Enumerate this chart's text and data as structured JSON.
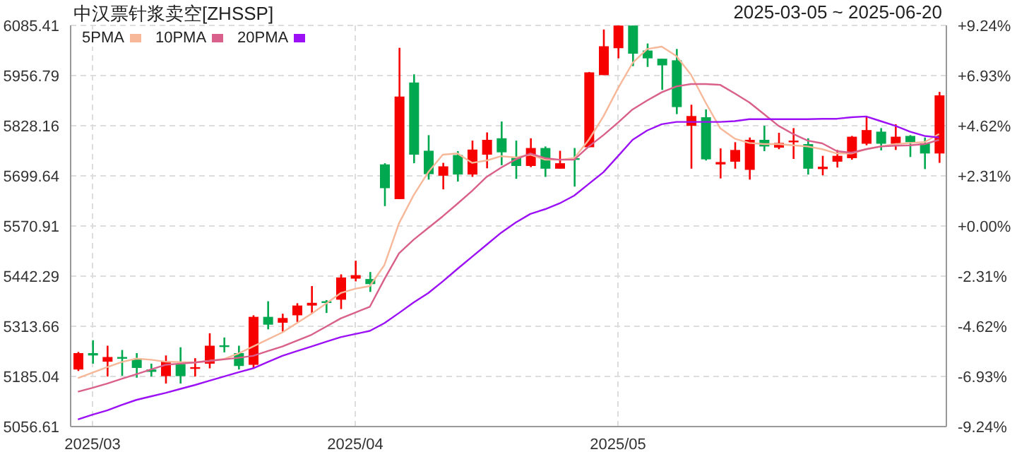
{
  "chart_data": {
    "type": "candlestick",
    "title": "中汉票针浆卖空[ZHSSP]",
    "subtitle": "2025-03-05 ~ 2025-06-20",
    "categories": [
      null,
      "2025/03",
      null,
      null,
      null,
      null,
      null,
      null,
      null,
      null,
      null,
      null,
      null,
      null,
      null,
      null,
      null,
      null,
      null,
      "2025/04",
      null,
      null,
      null,
      null,
      null,
      null,
      null,
      null,
      null,
      null,
      null,
      null,
      null,
      null,
      null,
      null,
      null,
      "2025/05",
      null,
      null,
      null,
      null,
      null,
      null,
      null,
      null,
      null,
      null,
      null,
      null,
      null,
      null,
      null,
      null,
      null,
      null,
      null,
      null,
      null,
      null
    ],
    "ohlc": [
      [
        5203,
        5248,
        5199,
        5245
      ],
      [
        5245,
        5278,
        5218,
        5239
      ],
      [
        5223,
        5264,
        5185,
        5235
      ],
      [
        5235,
        5253,
        5187,
        5232
      ],
      [
        5229,
        5245,
        5182,
        5207
      ],
      [
        5203,
        5218,
        5185,
        5197
      ],
      [
        5186,
        5239,
        5167,
        5224
      ],
      [
        5217,
        5260,
        5167,
        5186
      ],
      [
        5207,
        5232,
        5185,
        5209
      ],
      [
        5218,
        5296,
        5206,
        5264
      ],
      [
        5265,
        5285,
        5247,
        5261
      ],
      [
        5245,
        5264,
        5203,
        5212
      ],
      [
        5215,
        5342,
        5205,
        5338
      ],
      [
        5338,
        5378,
        5306,
        5318
      ],
      [
        5323,
        5346,
        5300,
        5335
      ],
      [
        5342,
        5373,
        5325,
        5367
      ],
      [
        5367,
        5417,
        5346,
        5374
      ],
      [
        5378,
        5381,
        5348,
        5375
      ],
      [
        5382,
        5447,
        5358,
        5439
      ],
      [
        5436,
        5482,
        5429,
        5445
      ],
      [
        5435,
        5453,
        5402,
        5422
      ],
      [
        5729,
        5732,
        5622,
        5668
      ],
      [
        5640,
        6028,
        5640,
        5903
      ],
      [
        5939,
        5960,
        5732,
        5754
      ],
      [
        5764,
        5804,
        5690,
        5704
      ],
      [
        5700,
        5733,
        5665,
        5724
      ],
      [
        5753,
        5763,
        5685,
        5703
      ],
      [
        5703,
        5790,
        5697,
        5767
      ],
      [
        5754,
        5811,
        5719,
        5792
      ],
      [
        5796,
        5839,
        5727,
        5760
      ],
      [
        5746,
        5790,
        5692,
        5725
      ],
      [
        5725,
        5796,
        5722,
        5771
      ],
      [
        5771,
        5775,
        5697,
        5718
      ],
      [
        5718,
        5764,
        5718,
        5732
      ],
      [
        5745,
        5771,
        5672,
        5741
      ],
      [
        5773,
        5966,
        5773,
        5965
      ],
      [
        5958,
        6075,
        5958,
        6032
      ],
      [
        6027,
        6085,
        6001,
        6085
      ],
      [
        6085,
        6085,
        5981,
        6013
      ],
      [
        6021,
        6039,
        5979,
        6001
      ],
      [
        6000,
        6000,
        5920,
        5983
      ],
      [
        5996,
        6025,
        5858,
        5876
      ],
      [
        5828,
        5882,
        5718,
        5853
      ],
      [
        5850,
        5870,
        5739,
        5742
      ],
      [
        5729,
        5770,
        5693,
        5735
      ],
      [
        5736,
        5786,
        5718,
        5766
      ],
      [
        5715,
        5798,
        5690,
        5792
      ],
      [
        5792,
        5828,
        5763,
        5775
      ],
      [
        5772,
        5810,
        5768,
        5784
      ],
      [
        5786,
        5822,
        5743,
        5790
      ],
      [
        5781,
        5796,
        5703,
        5718
      ],
      [
        5717,
        5751,
        5701,
        5723
      ],
      [
        5736,
        5766,
        5721,
        5751
      ],
      [
        5745,
        5802,
        5741,
        5800
      ],
      [
        5782,
        5852,
        5778,
        5817
      ],
      [
        5813,
        5822,
        5765,
        5782
      ],
      [
        5782,
        5832,
        5766,
        5800
      ],
      [
        5802,
        5804,
        5748,
        5786
      ],
      [
        5783,
        5798,
        5717,
        5757
      ],
      [
        5757,
        5915,
        5733,
        5906
      ]
    ],
    "colors": [
      "#f70000",
      "#00a84f",
      "#f70000",
      "#00a84f",
      "#00a84f",
      "#00a84f",
      "#f70000",
      "#00a84f",
      "#f70000",
      "#f70000",
      "#00a84f",
      "#00a84f",
      "#f70000",
      "#00a84f",
      "#f70000",
      "#f70000",
      "#f70000",
      "#00a84f",
      "#f70000",
      "#f70000",
      "#00a84f",
      "#00a84f",
      "#f70000",
      "#00a84f",
      "#00a84f",
      "#f70000",
      "#00a84f",
      "#f70000",
      "#f70000",
      "#00a84f",
      "#00a84f",
      "#f70000",
      "#00a84f",
      "#f70000",
      "#00a84f",
      "#f70000",
      "#f70000",
      "#f70000",
      "#00a84f",
      "#00a84f",
      "#00a84f",
      "#00a84f",
      "#f70000",
      "#00a84f",
      "#f70000",
      "#f70000",
      "#f70000",
      "#00a84f",
      "#f70000",
      "#f70000",
      "#00a84f",
      "#f70000",
      "#f70000",
      "#f70000",
      "#f70000",
      "#00a84f",
      "#f70000",
      "#00a84f",
      "#00a84f",
      "#f70000"
    ],
    "series": [
      {
        "name": "5PMA",
        "type": "line",
        "color": "#f7b899",
        "values": [
          5181,
          5195,
          5209,
          5222,
          5231,
          5228,
          5223,
          5222,
          5221,
          5225,
          5230,
          5244,
          5262,
          5280,
          5298,
          5322,
          5346,
          5372,
          5399,
          5410,
          5417,
          5471,
          5578,
          5650,
          5709,
          5754,
          5757,
          5733,
          5739,
          5750,
          5747,
          5754,
          5741,
          5741,
          5745,
          5792,
          5852,
          5924,
          5989,
          6025,
          6031,
          6007,
          5959,
          5888,
          5822,
          5795,
          5784,
          5781,
          5781,
          5778,
          5775,
          5768,
          5757,
          5757,
          5768,
          5775,
          5781,
          5784,
          5786,
          5807
        ]
      },
      {
        "name": "10PMA",
        "type": "line",
        "color": "#d9608a",
        "values": [
          5146,
          5156,
          5167,
          5179,
          5191,
          5203,
          5215,
          5218,
          5221,
          5225,
          5229,
          5233,
          5238,
          5250,
          5262,
          5277,
          5292,
          5313,
          5334,
          5349,
          5364,
          5435,
          5501,
          5536,
          5566,
          5596,
          5628,
          5661,
          5697,
          5721,
          5742,
          5757,
          5745,
          5741,
          5741,
          5775,
          5804,
          5836,
          5870,
          5893,
          5914,
          5929,
          5935,
          5935,
          5933,
          5911,
          5888,
          5858,
          5828,
          5807,
          5790,
          5783,
          5763,
          5759,
          5768,
          5775,
          5777,
          5778,
          5781,
          5792
        ]
      },
      {
        "name": "20PMA",
        "type": "line",
        "color": "#9b10f5",
        "values": [
          5075,
          5087,
          5098,
          5112,
          5125,
          5134,
          5143,
          5153,
          5163,
          5174,
          5185,
          5196,
          5206,
          5222,
          5238,
          5250,
          5262,
          5274,
          5286,
          5294,
          5302,
          5322,
          5348,
          5375,
          5399,
          5429,
          5461,
          5492,
          5523,
          5554,
          5580,
          5602,
          5614,
          5629,
          5649,
          5679,
          5709,
          5750,
          5792,
          5816,
          5832,
          5838,
          5838,
          5838,
          5838,
          5840,
          5845,
          5845,
          5845,
          5845,
          5845,
          5846,
          5846,
          5850,
          5852,
          5840,
          5828,
          5813,
          5802,
          5798
        ]
      }
    ],
    "ylim": [
      5056.61,
      6085.41
    ],
    "yticks": [
      5056.61,
      5185.04,
      5313.66,
      5442.29,
      5570.91,
      5699.64,
      5828.16,
      5956.79,
      6085.41
    ],
    "y2lim": [
      -9.24,
      9.24
    ],
    "y2ticks": [
      {
        "value": -9.24,
        "label": "-9.24%"
      },
      {
        "value": -6.93,
        "label": "-6.93%"
      },
      {
        "value": -4.62,
        "label": "-4.62%"
      },
      {
        "value": -2.31,
        "label": "-2.31%"
      },
      {
        "value": 0,
        "label": "+0.00%"
      },
      {
        "value": 2.31,
        "label": "+2.31%"
      },
      {
        "value": 4.62,
        "label": "+4.62%"
      },
      {
        "value": 6.93,
        "label": "+6.93%"
      },
      {
        "value": 9.24,
        "label": "+9.24%"
      }
    ],
    "grid": true,
    "legend": "top left"
  }
}
